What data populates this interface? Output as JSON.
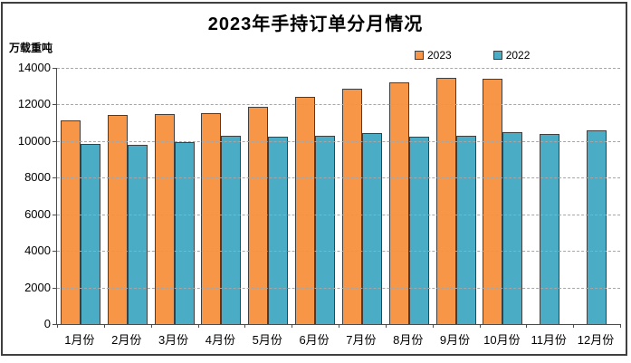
{
  "chart_data": {
    "type": "bar",
    "title": "2023年手持订单分月情况",
    "ylabel": "万载重吨",
    "xlabel": "",
    "categories": [
      "1月份",
      "2月份",
      "3月份",
      "4月份",
      "5月份",
      "6月份",
      "7月份",
      "8月份",
      "9月份",
      "10月份",
      "11月份",
      "12月份"
    ],
    "series": [
      {
        "name": "2023",
        "color": "#F79646",
        "values": [
          11100,
          11390,
          11450,
          11500,
          11800,
          12380,
          12790,
          13150,
          13390,
          13380,
          null,
          null
        ]
      },
      {
        "name": "2022",
        "color": "#4BACC6",
        "values": [
          9800,
          9760,
          9900,
          10230,
          10210,
          10250,
          10370,
          10210,
          10260,
          10450,
          10350,
          10550
        ]
      }
    ],
    "ylim": [
      0,
      14000
    ],
    "yticks": [
      0,
      2000,
      4000,
      6000,
      8000,
      10000,
      12000,
      14000
    ],
    "grid": "horizontal-dashed",
    "legend_position": "top-right-inside",
    "colors": {
      "bar_border": "#3f3f3f",
      "axis": "#4d4d4d",
      "gridline": "#a6a6a6",
      "frame_border": "#3f3f3f",
      "background": "#ffffff",
      "text": "#000000"
    }
  }
}
